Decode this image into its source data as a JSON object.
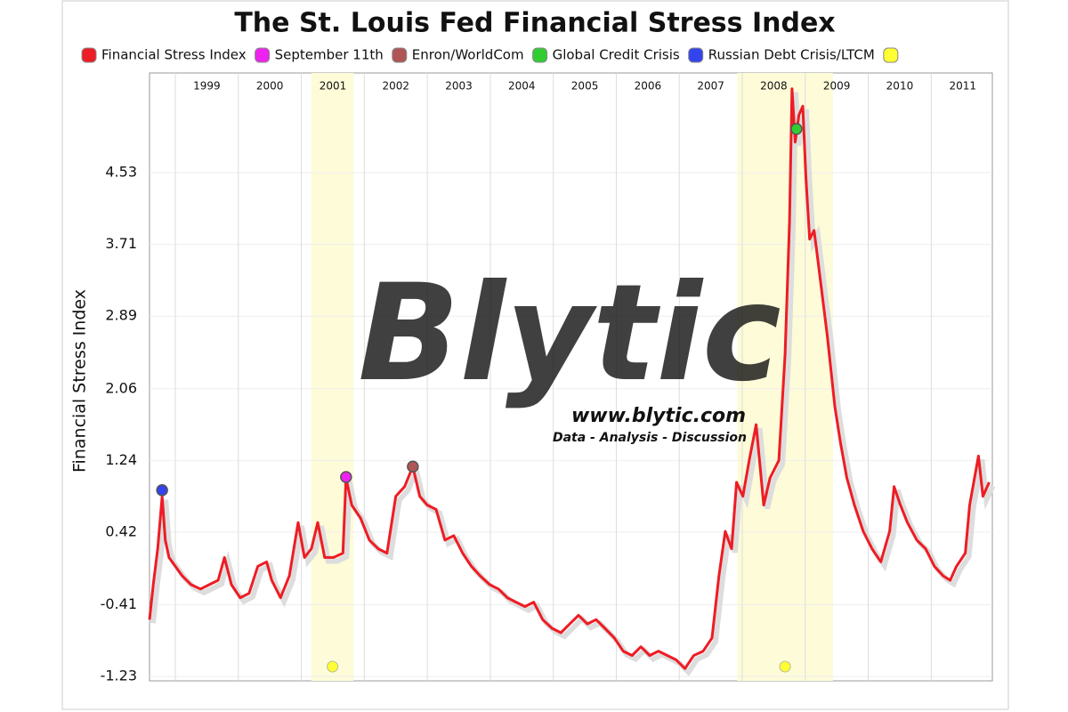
{
  "chart_data": {
    "type": "line",
    "title": "The St. Louis Fed Financial Stress Index",
    "y_label": "Financial Stress Index",
    "watermark": {
      "brand": "Blytic",
      "url": "www.blytic.com",
      "tagline": "Data - Analysis - Discussion"
    },
    "xlim": [
      1998.59,
      2011.97
    ],
    "xticks": [
      1999,
      2000,
      2001,
      2002,
      2003,
      2004,
      2005,
      2006,
      2007,
      2008,
      2009,
      2010,
      2011
    ],
    "ylim": [
      -1.28,
      5.67
    ],
    "yticks": [
      -1.23,
      -0.41,
      0.42,
      1.24,
      2.06,
      2.89,
      3.71,
      4.53
    ],
    "grid": true,
    "series": [
      {
        "name": "Financial Stress Index",
        "color": "#ee1c24",
        "x": [
          1998.59,
          1998.65,
          1998.72,
          1998.79,
          1998.84,
          1998.9,
          1999.0,
          1999.11,
          1999.25,
          1999.4,
          1999.54,
          1999.68,
          1999.78,
          1999.89,
          2000.03,
          2000.17,
          2000.31,
          2000.45,
          2000.53,
          2000.67,
          2000.81,
          2000.95,
          2001.05,
          2001.16,
          2001.26,
          2001.37,
          2001.51,
          2001.66,
          2001.71,
          2001.8,
          2001.94,
          2002.08,
          2002.22,
          2002.36,
          2002.5,
          2002.64,
          2002.77,
          2002.88,
          2003.0,
          2003.14,
          2003.28,
          2003.42,
          2003.56,
          2003.7,
          2003.84,
          2003.99,
          2004.13,
          2004.27,
          2004.41,
          2004.55,
          2004.69,
          2004.83,
          2004.98,
          2005.12,
          2005.26,
          2005.4,
          2005.54,
          2005.68,
          2005.82,
          2005.97,
          2006.11,
          2006.25,
          2006.39,
          2006.53,
          2006.67,
          2006.81,
          2006.95,
          2007.09,
          2007.23,
          2007.38,
          2007.52,
          2007.63,
          2007.73,
          2007.83,
          2007.91,
          2008.01,
          2008.11,
          2008.22,
          2008.34,
          2008.44,
          2008.58,
          2008.68,
          2008.75,
          2008.79,
          2008.84,
          2008.9,
          2008.96,
          2009.01,
          2009.07,
          2009.14,
          2009.21,
          2009.35,
          2009.47,
          2009.56,
          2009.66,
          2009.78,
          2009.92,
          2010.06,
          2010.2,
          2010.34,
          2010.41,
          2010.51,
          2010.62,
          2010.77,
          2010.91,
          2011.05,
          2011.19,
          2011.3,
          2011.4,
          2011.54,
          2011.61,
          2011.75,
          2011.82,
          2011.92
        ],
        "values": [
          -0.58,
          -0.18,
          0.23,
          0.83,
          0.33,
          0.13,
          0.03,
          -0.08,
          -0.18,
          -0.23,
          -0.18,
          -0.13,
          0.13,
          -0.18,
          -0.33,
          -0.28,
          0.03,
          0.08,
          -0.13,
          -0.33,
          -0.08,
          0.53,
          0.13,
          0.23,
          0.53,
          0.13,
          0.13,
          0.18,
          1.04,
          0.73,
          0.58,
          0.33,
          0.23,
          0.18,
          0.83,
          0.94,
          1.17,
          0.83,
          0.73,
          0.68,
          0.33,
          0.38,
          0.18,
          0.03,
          -0.08,
          -0.18,
          -0.23,
          -0.33,
          -0.38,
          -0.43,
          -0.38,
          -0.58,
          -0.68,
          -0.73,
          -0.63,
          -0.53,
          -0.63,
          -0.58,
          -0.68,
          -0.79,
          -0.94,
          -0.99,
          -0.89,
          -0.99,
          -0.94,
          -0.99,
          -1.04,
          -1.14,
          -0.99,
          -0.94,
          -0.79,
          -0.08,
          0.43,
          0.23,
          0.99,
          0.83,
          1.24,
          1.65,
          0.73,
          1.04,
          1.24,
          2.45,
          3.97,
          5.49,
          4.88,
          5.19,
          5.29,
          4.48,
          3.77,
          3.87,
          3.47,
          2.66,
          1.85,
          1.44,
          1.04,
          0.73,
          0.43,
          0.23,
          0.08,
          0.43,
          0.94,
          0.73,
          0.53,
          0.33,
          0.23,
          0.03,
          -0.08,
          -0.13,
          0.03,
          0.18,
          0.73,
          1.29,
          0.83,
          0.99
        ]
      }
    ],
    "events": [
      {
        "name": "September 11th",
        "color": "#ee22ee",
        "x": 2001.71,
        "value": 1.05
      },
      {
        "name": "Enron/WorldCom",
        "color": "#b05555",
        "x": 2002.77,
        "value": 1.17
      },
      {
        "name": "Global Credit Crisis",
        "color": "#33cc33",
        "x": 2008.86,
        "value": 5.03
      },
      {
        "name": "Russian Debt Crisis/LTCM",
        "color": "#3344ee",
        "x": 1998.79,
        "value": 0.9
      }
    ],
    "recession_color": "#ffff33",
    "recessions": [
      {
        "x0": 2001.16,
        "x1": 2001.83
      },
      {
        "x0": 2007.92,
        "x1": 2009.44
      }
    ]
  }
}
